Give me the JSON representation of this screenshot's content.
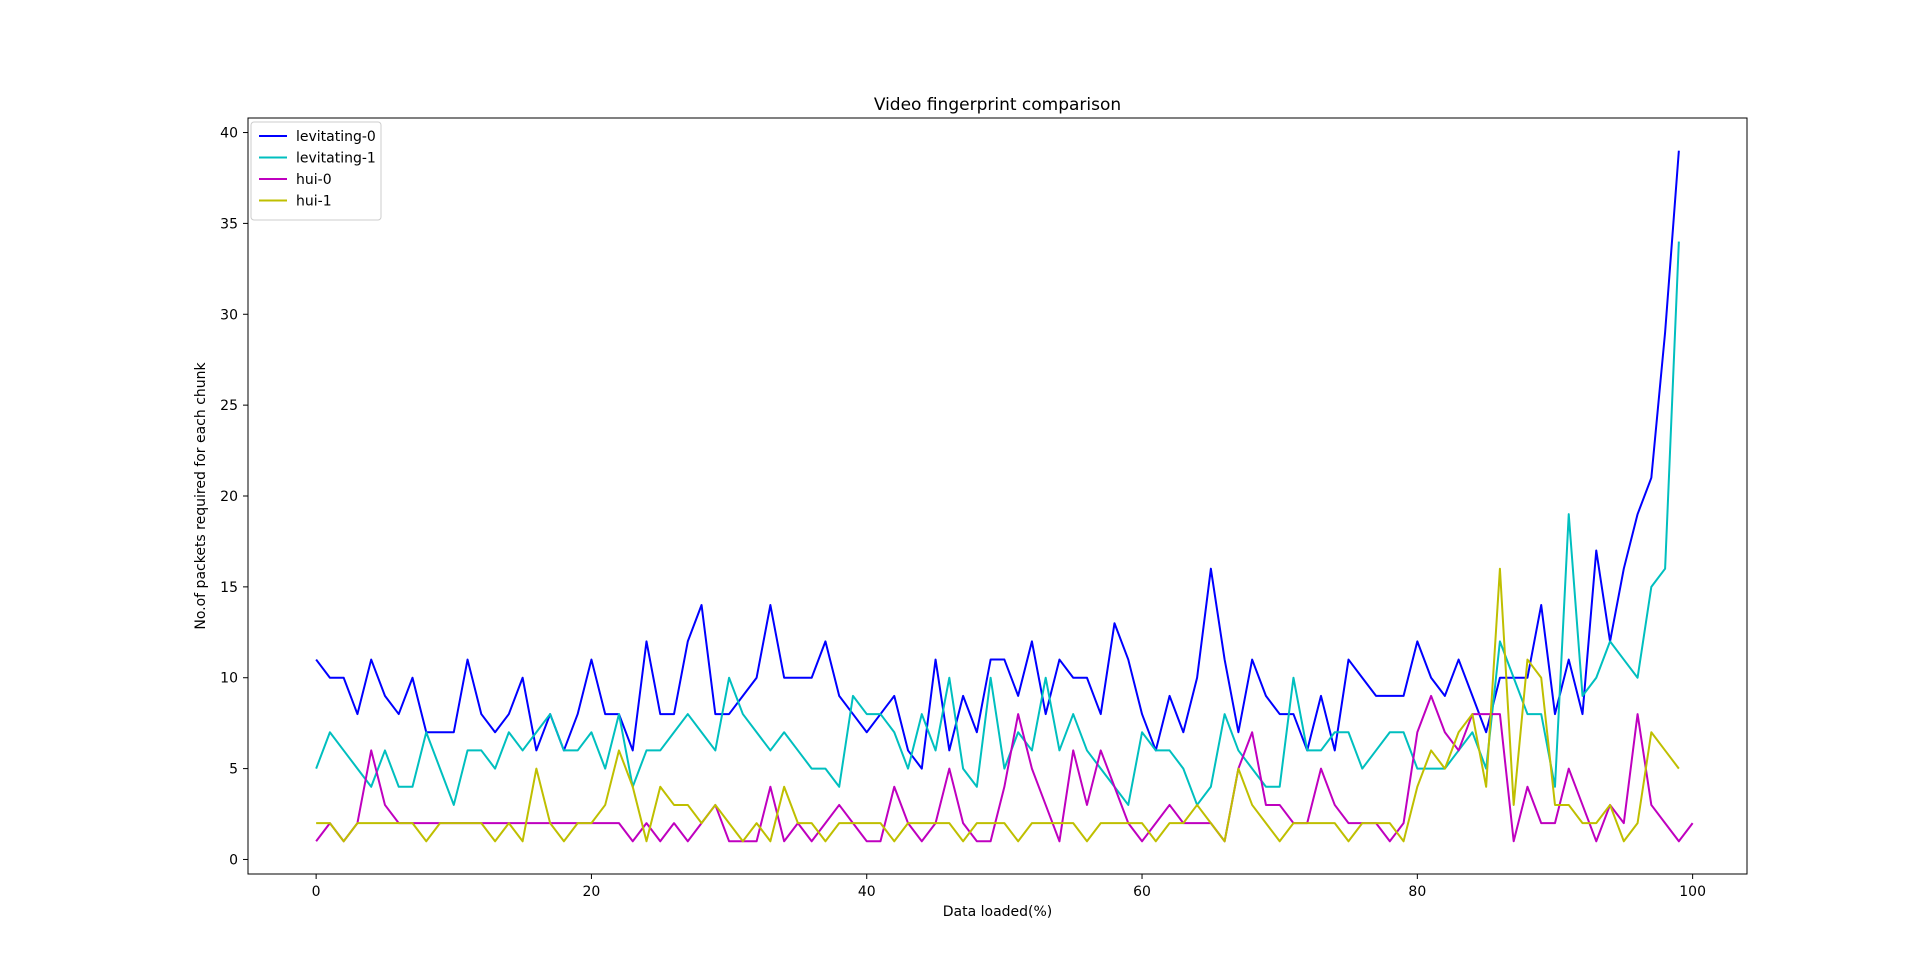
{
  "chart_data": {
    "type": "line",
    "title": "Video fingerprint comparison",
    "xlabel": "Data loaded(%)",
    "ylabel": "No.of packets required for each chunk",
    "xlim": [
      -4.95,
      103.95
    ],
    "ylim": [
      -0.8,
      40.8
    ],
    "xticks": [
      0,
      20,
      40,
      60,
      80,
      100
    ],
    "yticks": [
      0,
      5,
      10,
      15,
      20,
      25,
      30,
      35,
      40
    ],
    "grid": false,
    "legend_position": "top-left",
    "x_start": 0,
    "series": [
      {
        "name": "levitating-0",
        "color": "#0000ff",
        "values": [
          11,
          10,
          10,
          8,
          11,
          9,
          8,
          10,
          7,
          7,
          7,
          11,
          8,
          7,
          8,
          10,
          6,
          8,
          6,
          8,
          11,
          8,
          8,
          6,
          12,
          8,
          8,
          12,
          14,
          8,
          8,
          9,
          10,
          14,
          10,
          10,
          10,
          12,
          9,
          8,
          7,
          8,
          9,
          6,
          5,
          11,
          6,
          9,
          7,
          11,
          11,
          9,
          12,
          8,
          11,
          10,
          10,
          8,
          13,
          11,
          8,
          6,
          9,
          7,
          10,
          16,
          11,
          7,
          11,
          9,
          8,
          8,
          6,
          9,
          6,
          11,
          10,
          9,
          9,
          9,
          12,
          10,
          9,
          11,
          9,
          7,
          10,
          10,
          10,
          14,
          8,
          11,
          8,
          17,
          12,
          16,
          19,
          21,
          29,
          39
        ]
      },
      {
        "name": "levitating-1",
        "color": "#00bfbf",
        "values": [
          5,
          7,
          6,
          5,
          4,
          6,
          4,
          4,
          7,
          5,
          3,
          6,
          6,
          5,
          7,
          6,
          7,
          8,
          6,
          6,
          7,
          5,
          8,
          4,
          6,
          6,
          7,
          8,
          7,
          6,
          10,
          8,
          7,
          6,
          7,
          6,
          5,
          5,
          4,
          9,
          8,
          8,
          7,
          5,
          8,
          6,
          10,
          5,
          4,
          10,
          5,
          7,
          6,
          10,
          6,
          8,
          6,
          5,
          4,
          3,
          7,
          6,
          6,
          5,
          3,
          4,
          8,
          6,
          5,
          4,
          4,
          10,
          6,
          6,
          7,
          7,
          5,
          6,
          7,
          7,
          5,
          5,
          5,
          6,
          7,
          5,
          12,
          10,
          8,
          8,
          4,
          19,
          9,
          10,
          12,
          11,
          10,
          15,
          16,
          34
        ]
      },
      {
        "name": "hui-0",
        "color": "#bf00bf",
        "values": [
          1,
          2,
          1,
          2,
          6,
          3,
          2,
          2,
          2,
          2,
          2,
          2,
          2,
          2,
          2,
          2,
          2,
          2,
          2,
          2,
          2,
          2,
          2,
          1,
          2,
          1,
          2,
          1,
          2,
          3,
          1,
          1,
          1,
          4,
          1,
          2,
          1,
          2,
          3,
          2,
          1,
          1,
          4,
          2,
          1,
          2,
          5,
          2,
          1,
          1,
          4,
          8,
          5,
          3,
          1,
          6,
          3,
          6,
          4,
          2,
          1,
          2,
          3,
          2,
          2,
          2,
          1,
          5,
          7,
          3,
          3,
          2,
          2,
          5,
          3,
          2,
          2,
          2,
          1,
          2,
          7,
          9,
          7,
          6,
          8,
          8,
          8,
          1,
          4,
          2,
          2,
          5,
          3,
          1,
          3,
          2,
          8,
          3,
          2,
          1,
          2
        ]
      },
      {
        "name": "hui-1",
        "color": "#bfbf00",
        "values": [
          2,
          2,
          1,
          2,
          2,
          2,
          2,
          2,
          1,
          2,
          2,
          2,
          2,
          1,
          2,
          1,
          5,
          2,
          1,
          2,
          2,
          3,
          6,
          4,
          1,
          4,
          3,
          3,
          2,
          3,
          2,
          1,
          2,
          1,
          4,
          2,
          2,
          1,
          2,
          2,
          2,
          2,
          1,
          2,
          2,
          2,
          2,
          1,
          2,
          2,
          2,
          1,
          2,
          2,
          2,
          2,
          1,
          2,
          2,
          2,
          2,
          1,
          2,
          2,
          3,
          2,
          1,
          5,
          3,
          2,
          1,
          2,
          2,
          2,
          2,
          1,
          2,
          2,
          2,
          1,
          4,
          6,
          5,
          7,
          8,
          4,
          16,
          3,
          11,
          10,
          3,
          3,
          2,
          2,
          3,
          1,
          2,
          7,
          6,
          5
        ]
      }
    ]
  }
}
